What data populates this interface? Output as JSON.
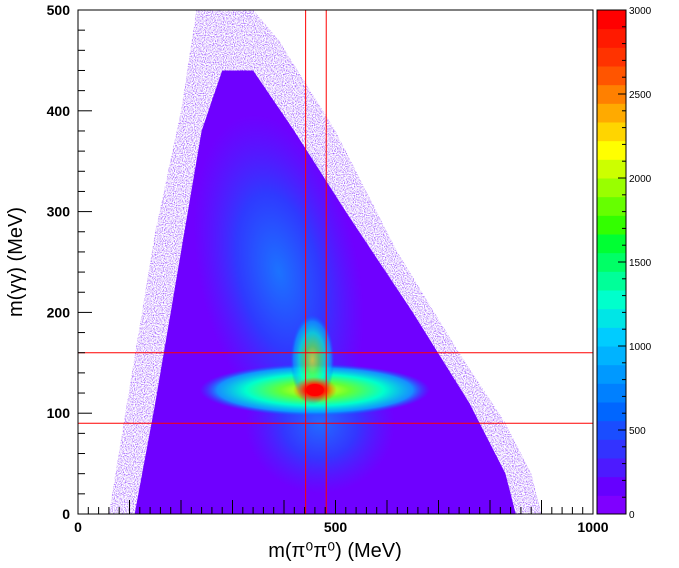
{
  "chart_data": {
    "type": "heatmap",
    "title": "",
    "xlabel": "m(π⁰π⁰) (MeV)",
    "ylabel": "m(γγ) (MeV)",
    "xlim": [
      0,
      1000
    ],
    "ylim": [
      0,
      500
    ],
    "x_ticks": [
      {
        "value": 0,
        "label": "0"
      },
      {
        "value": 500,
        "label": "500"
      },
      {
        "value": 1000,
        "label": "1000"
      }
    ],
    "y_ticks": [
      {
        "value": 0,
        "label": "0"
      },
      {
        "value": 100,
        "label": "100"
      },
      {
        "value": 200,
        "label": "200"
      },
      {
        "value": 300,
        "label": "300"
      },
      {
        "value": 400,
        "label": "400"
      },
      {
        "value": 500,
        "label": "500"
      }
    ],
    "colorbar": {
      "min": 0,
      "max": 3000,
      "ticks": [
        {
          "value": 0,
          "label": "0"
        },
        {
          "value": 500,
          "label": "500"
        },
        {
          "value": 1000,
          "label": "1000"
        },
        {
          "value": 1500,
          "label": "1500"
        },
        {
          "value": 2000,
          "label": "2000"
        },
        {
          "value": 2500,
          "label": "2500"
        },
        {
          "value": 3000,
          "label": "3000"
        }
      ],
      "colors": [
        "#7f00ff",
        "#6600ff",
        "#4d1aff",
        "#3333ff",
        "#1a4dff",
        "#0066ff",
        "#0080ff",
        "#0099ff",
        "#00b3ff",
        "#00ccff",
        "#00e6e6",
        "#00ffcc",
        "#00ff99",
        "#00ff66",
        "#00ff33",
        "#33ff00",
        "#66ff00",
        "#99ff00",
        "#ccff00",
        "#ffff00",
        "#ffd500",
        "#ffaa00",
        "#ff8000",
        "#ff5500",
        "#ff3300",
        "#ff1a00",
        "#ff0000"
      ]
    },
    "density_peak": {
      "x": 460,
      "y": 123,
      "value": 3000
    },
    "cut_lines": {
      "vertical_x": [
        442,
        482
      ],
      "horizontal_y": [
        90,
        160
      ],
      "color": "#ff0000"
    }
  }
}
